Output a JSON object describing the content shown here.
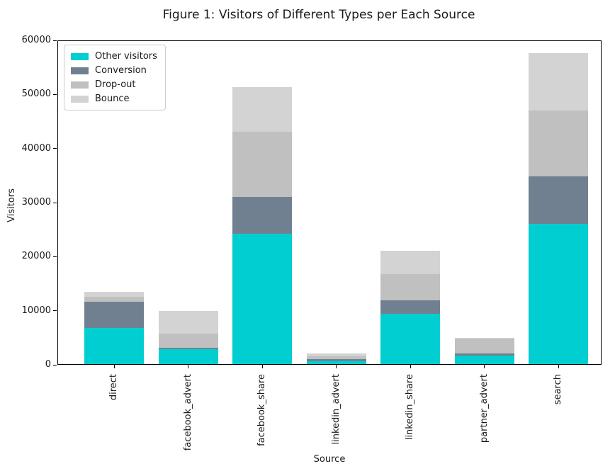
{
  "figure": {
    "title": "Figure 1: Visitors of Different Types per Each Source"
  },
  "chart_data": {
    "type": "bar",
    "stacked": true,
    "title": "Figure 1: Visitors of Different Types per Each Source",
    "xlabel": "Source",
    "ylabel": "Visitors",
    "ylim": [
      0,
      60000
    ],
    "yticks": [
      0,
      10000,
      20000,
      30000,
      40000,
      50000,
      60000
    ],
    "grid": false,
    "legend_position": "upper left",
    "categories": [
      "direct",
      "facebook_advert",
      "facebook_share",
      "linkedin_advert",
      "linkedin_share",
      "partner_advert",
      "search"
    ],
    "series": [
      {
        "name": "Other visitors",
        "color": "#00CED1",
        "values": [
          6800,
          2900,
          24300,
          600,
          9400,
          1700,
          26100
        ]
      },
      {
        "name": "Conversion",
        "color": "#708090",
        "values": [
          4800,
          200,
          6700,
          400,
          2500,
          400,
          8800
        ]
      },
      {
        "name": "Drop-out",
        "color": "#C0C0C0",
        "values": [
          1000,
          2600,
          12100,
          600,
          4900,
          2700,
          12100
        ]
      },
      {
        "name": "Bounce",
        "color": "#D3D3D3",
        "values": [
          900,
          4200,
          8200,
          500,
          4300,
          200,
          10600
        ]
      }
    ],
    "totals": [
      13500,
      9900,
      51300,
      2100,
      21100,
      5000,
      57600
    ]
  }
}
